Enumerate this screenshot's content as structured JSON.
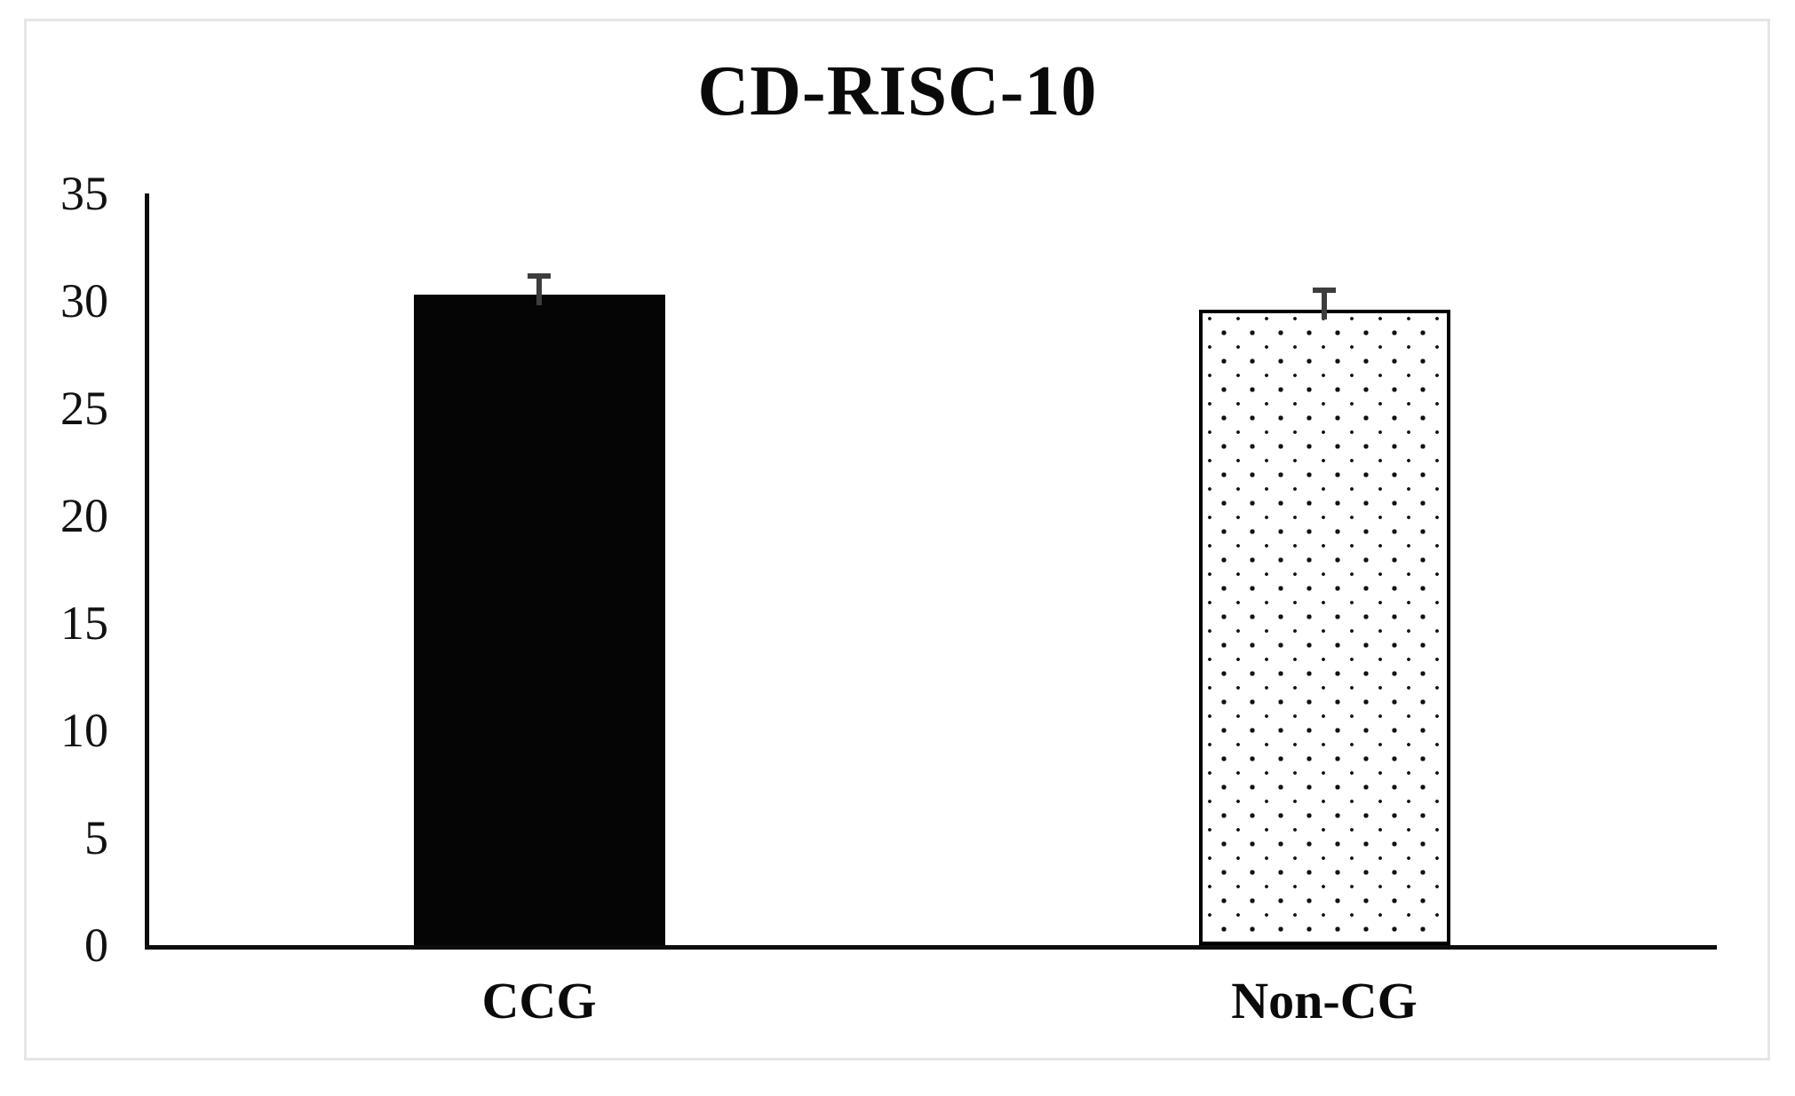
{
  "figure": {
    "title": "CD-RISC-10"
  },
  "chart_data": {
    "type": "bar",
    "title": "CD-RISC-10",
    "categories": [
      "CCG",
      "Non-CG"
    ],
    "values": [
      30.3,
      29.6
    ],
    "errors_upper": [
      1.0,
      1.0
    ],
    "ylim": [
      0,
      35
    ],
    "yticks": [
      0,
      5,
      10,
      15,
      20,
      25,
      30,
      35
    ],
    "xlabel": "",
    "ylabel": "",
    "grid": false,
    "legend": null,
    "bar_fills": [
      "solid-black",
      "white-dotted"
    ],
    "bar_border_color": "#000000",
    "error_bar_color": "#3d3d3d",
    "axis_color": "#0d0d0d",
    "frame_border_color": "#e6e6e6"
  }
}
